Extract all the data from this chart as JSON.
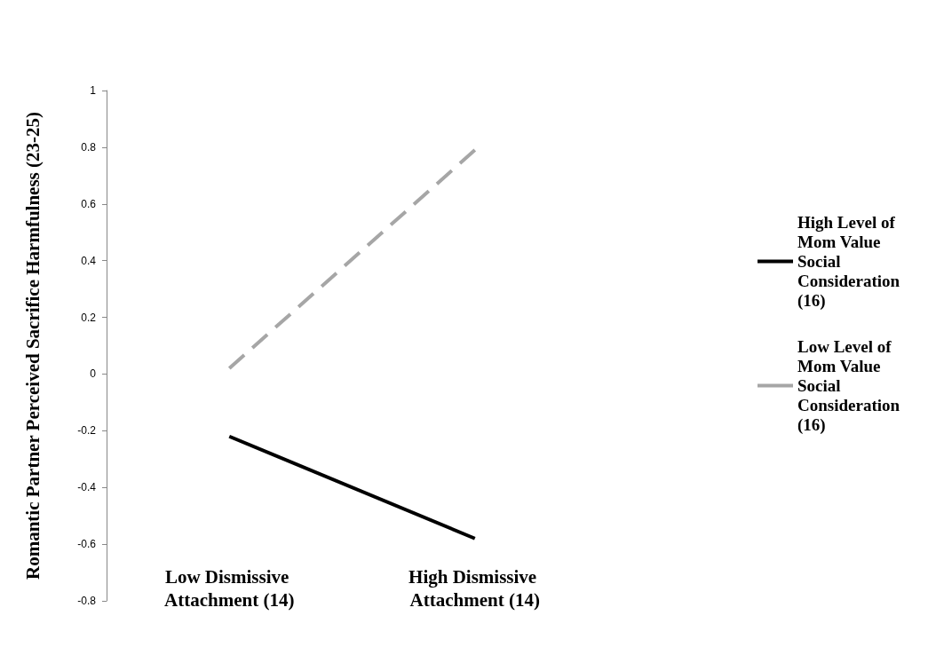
{
  "chart_data": {
    "type": "line",
    "ylabel": "Romantic Partner Perceived Sacrifice Harmfulness (23-25)",
    "categories": [
      "Low Dismissive Attachment (14)",
      "High Dismissive Attachment (14)"
    ],
    "series": [
      {
        "name": "High Level of Mom Value Social Consideration (16)",
        "color": "#000000",
        "values": [
          -0.22,
          -0.58
        ],
        "line_style": "solid"
      },
      {
        "name": "Low Level of Mom Value Social Consideration (16)",
        "color": "#a6a6a6",
        "values": [
          0.02,
          0.79
        ],
        "line_style": "dashed"
      }
    ],
    "ylim": [
      -0.8,
      1
    ],
    "yticks": [
      -0.8,
      -0.6,
      -0.4,
      -0.2,
      0,
      0.2,
      0.4,
      0.6,
      0.8,
      1
    ],
    "grid": false,
    "legend": "right",
    "marker": "none"
  }
}
